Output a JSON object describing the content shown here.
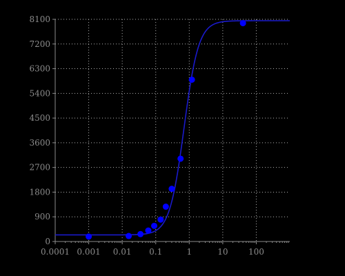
{
  "chart_data": {
    "type": "scatter",
    "title": "",
    "xlabel": "",
    "ylabel": "",
    "x_scale": "log",
    "xlim": [
      0.0001,
      1000
    ],
    "ylim": [
      0,
      8100
    ],
    "grid": true,
    "x_ticks": [
      0.0001,
      0.001,
      0.01,
      0.1,
      1,
      10,
      100
    ],
    "x_tick_labels": [
      "0.0001",
      "0.001",
      "0.01",
      "0.1",
      "1",
      "10",
      "100"
    ],
    "y_ticks": [
      0,
      900,
      1800,
      2700,
      3600,
      4500,
      5400,
      6300,
      7200,
      8100
    ],
    "y_tick_labels": [
      "0",
      "900",
      "1800",
      "2700",
      "3600",
      "4500",
      "5400",
      "6300",
      "7200",
      "8100"
    ],
    "series": [
      {
        "kind": "points",
        "color": "#0000ff",
        "points": [
          {
            "x": 0.001,
            "y": 180
          },
          {
            "x": 0.0156,
            "y": 200
          },
          {
            "x": 0.035,
            "y": 270
          },
          {
            "x": 0.06,
            "y": 400
          },
          {
            "x": 0.09,
            "y": 570
          },
          {
            "x": 0.14,
            "y": 800
          },
          {
            "x": 0.2,
            "y": 1270
          },
          {
            "x": 0.3,
            "y": 1920
          },
          {
            "x": 0.55,
            "y": 3020
          },
          {
            "x": 1.2,
            "y": 5900
          },
          {
            "x": 40,
            "y": 7960
          }
        ]
      },
      {
        "kind": "fitted-curve",
        "color": "#1a1acc",
        "model": "four-parameter logistic",
        "bottom": 240,
        "top": 8050,
        "ec50": 0.7,
        "hill": 2.0
      }
    ]
  }
}
